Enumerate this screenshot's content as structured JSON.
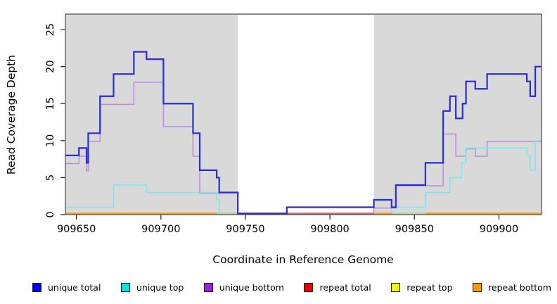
{
  "chart_data": {
    "type": "line",
    "subtype": "step",
    "title": "",
    "xlabel": "Coordinate in Reference Genome",
    "ylabel": "Read Coverage Depth",
    "xlim": [
      909643.5,
      909925.2
    ],
    "ylim": [
      0,
      27.1
    ],
    "x_ticks": [
      909650,
      909700,
      909750,
      909800,
      909850,
      909900
    ],
    "y_ticks": [
      0,
      5,
      10,
      15,
      20,
      25
    ],
    "grid": false,
    "legend_position": "bottom",
    "page_bg": "#ffffff",
    "plot_bg": "#d9d9d9",
    "box_color": "#4a4a4a",
    "tick_color": "#1a1a1a",
    "repeat_region_band": {
      "x0": 909745.5,
      "x1": 909826,
      "color": "#ffffff"
    },
    "series": [
      {
        "name": "unique total",
        "color": "#0000ee",
        "line_color": "#2b2bd5",
        "width": 2.2,
        "steps": [
          [
            909643.5,
            8
          ],
          [
            909651.5,
            9
          ],
          [
            909656,
            7
          ],
          [
            909657,
            11
          ],
          [
            909664,
            16
          ],
          [
            909672,
            19
          ],
          [
            909684,
            22
          ],
          [
            909691.5,
            21
          ],
          [
            909701.5,
            15
          ],
          [
            909719,
            11
          ],
          [
            909723,
            6
          ],
          [
            909733,
            5
          ],
          [
            909734.5,
            3
          ],
          [
            909745.5,
            0
          ],
          [
            909774.5,
            1
          ],
          [
            909826,
            2
          ],
          [
            909836.5,
            1
          ],
          [
            909839,
            4
          ],
          [
            909856.5,
            7
          ],
          [
            909867,
            14
          ],
          [
            909871,
            16
          ],
          [
            909874.5,
            13
          ],
          [
            909878.5,
            15
          ],
          [
            909880.5,
            18
          ],
          [
            909886,
            17
          ],
          [
            909893,
            19
          ],
          [
            909916.5,
            18
          ],
          [
            909918.5,
            16
          ],
          [
            909921.5,
            20
          ]
        ]
      },
      {
        "name": "unique top",
        "color": "#00e5ee",
        "line_color": "#76e8ef",
        "width": 1.5,
        "steps": [
          [
            909643.5,
            1
          ],
          [
            909672,
            4
          ],
          [
            909691.5,
            3
          ],
          [
            909733,
            2
          ],
          [
            909734.5,
            0
          ],
          [
            909836.5,
            1
          ],
          [
            909856.5,
            3
          ],
          [
            909871,
            5
          ],
          [
            909878,
            7
          ],
          [
            909880.5,
            9
          ],
          [
            909916.5,
            8
          ],
          [
            909918.5,
            6
          ],
          [
            909921.5,
            10
          ]
        ]
      },
      {
        "name": "unique bottom",
        "color": "#a11fd4",
        "line_color": "#b88ce0",
        "width": 1.5,
        "steps": [
          [
            909643.5,
            7
          ],
          [
            909651.5,
            8
          ],
          [
            909656,
            6
          ],
          [
            909657,
            10
          ],
          [
            909664,
            15
          ],
          [
            909684,
            18
          ],
          [
            909701.5,
            12
          ],
          [
            909719,
            8
          ],
          [
            909723,
            3
          ],
          [
            909745.5,
            0
          ],
          [
            909826,
            1
          ],
          [
            909839,
            4
          ],
          [
            909867,
            11
          ],
          [
            909874.5,
            8
          ],
          [
            909880.5,
            9
          ],
          [
            909886,
            8
          ],
          [
            909893,
            10
          ]
        ]
      },
      {
        "name": "repeat total",
        "color": "#ee0000",
        "line_color": "#e25672",
        "width": 1.4,
        "steps": [
          [
            909643.5,
            0
          ]
        ]
      },
      {
        "name": "repeat top",
        "color": "#f7f700",
        "line_color": "#f7f700",
        "width": 1.4,
        "steps": [
          [
            909643.5,
            0
          ]
        ]
      },
      {
        "name": "repeat bottom",
        "color": "#ff9d00",
        "line_color": "#ff9d00",
        "width": 1.8,
        "steps": [
          [
            909643.5,
            0
          ]
        ]
      }
    ],
    "baseline_segments": [
      {
        "x0": 909643.5,
        "x1": 909733,
        "color": "#ff9d00"
      },
      {
        "x0": 909733,
        "x1": 909745.5,
        "color": "#a6d7a6"
      },
      {
        "x0": 909745.5,
        "x1": 909826,
        "color": "#e25672"
      },
      {
        "x0": 909826,
        "x1": 909837,
        "color": "#ff9d00"
      },
      {
        "x0": 909837,
        "x1": 909856.5,
        "color": "#a6d7a6"
      },
      {
        "x0": 909856.5,
        "x1": 909925.2,
        "color": "#ff9d00"
      }
    ]
  },
  "legend": {
    "entries": [
      {
        "label": "unique total",
        "color": "#0000ee"
      },
      {
        "label": "unique top",
        "color": "#00e5ee"
      },
      {
        "label": "unique bottom",
        "color": "#a11fd4"
      },
      {
        "label": "repeat total",
        "color": "#ee0000"
      },
      {
        "label": "repeat top",
        "color": "#f7f700"
      },
      {
        "label": "repeat bottom",
        "color": "#ff9d00"
      }
    ]
  }
}
